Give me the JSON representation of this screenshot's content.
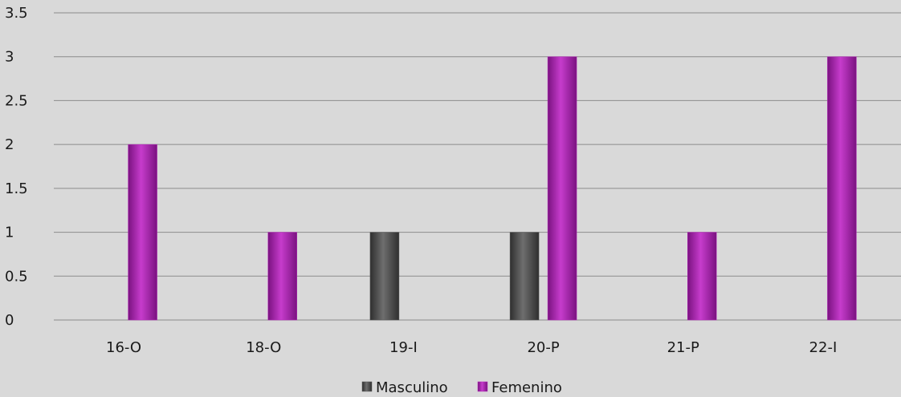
{
  "chart_data": {
    "type": "bar",
    "categories": [
      "16-O",
      "18-O",
      "19-I",
      "20-P",
      "21-P",
      "22-I"
    ],
    "series": [
      {
        "name": "Masculino",
        "values": [
          0,
          0,
          1,
          1,
          0,
          0
        ],
        "color": "#5a5a5a"
      },
      {
        "name": "Femenino",
        "values": [
          2,
          1,
          0,
          3,
          1,
          3
        ],
        "color": "#b52bbb"
      }
    ],
    "yticks": [
      "0",
      "0.5",
      "1",
      "1.5",
      "2",
      "2.5",
      "3",
      "3.5"
    ],
    "ylim": [
      0,
      3.5
    ],
    "grid": true,
    "legend_position": "bottom",
    "title": "",
    "xlabel": "",
    "ylabel": ""
  }
}
